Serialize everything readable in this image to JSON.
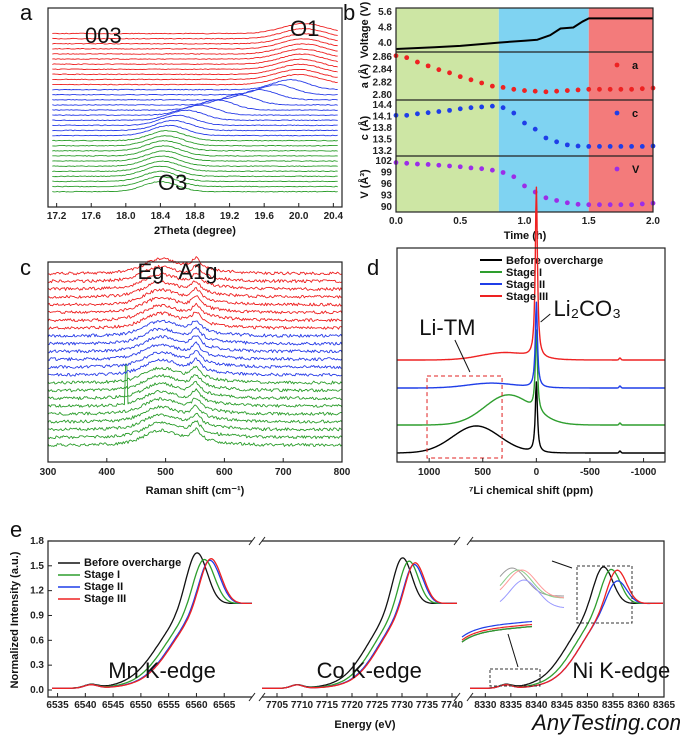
{
  "chart_data": [
    {
      "panel": "a",
      "type": "line",
      "xlabel": "2Theta (degree)",
      "xlim": [
        17.1,
        20.5
      ],
      "xticks": [
        "17.2",
        "17.6",
        "18.0",
        "18.4",
        "18.8",
        "19.2",
        "19.6",
        "20.0",
        "20.4"
      ],
      "annotations": [
        "003",
        "O1",
        "O3"
      ],
      "annotation_colors": [
        "#111111",
        "#e02020",
        "#e02020"
      ],
      "stacks": [
        {
          "color": "#2e9e2e",
          "peaks": [
            18.4,
            18.4,
            18.4,
            18.4,
            18.42,
            18.42,
            18.44,
            18.44,
            18.45,
            18.46,
            18.48
          ]
        },
        {
          "color": "#2a3ee8",
          "peaks": [
            18.5,
            18.55,
            18.6,
            18.7,
            18.85,
            19.05,
            19.3,
            19.55,
            19.75,
            19.9
          ]
        },
        {
          "color": "#ee2222",
          "peaks": [
            20.0,
            20.0,
            20.02,
            20.02,
            20.04,
            20.04,
            20.05,
            20.05,
            20.06,
            20.06,
            20.06
          ]
        }
      ]
    },
    {
      "panel": "b",
      "type": "scatter",
      "xlabel": "Time (h)",
      "xlim": [
        0,
        2.0
      ],
      "xticks": [
        "0.0",
        "0.5",
        "1.0",
        "1.5",
        "2.0"
      ],
      "regions": [
        {
          "from": 0,
          "to": 0.8,
          "color": "#cde6a4"
        },
        {
          "from": 0.8,
          "to": 1.5,
          "color": "#7fd3f2"
        },
        {
          "from": 1.5,
          "to": 2.0,
          "color": "#f37b7b"
        }
      ],
      "voltage": {
        "ylabel": "Voltage (V)",
        "ylim": [
          3.6,
          5.7
        ],
        "yticks": [
          "4.0",
          "4.8",
          "5.6"
        ],
        "color": "#000000",
        "t": [
          0,
          0.3,
          0.5,
          0.8,
          1.0,
          1.1,
          1.2,
          1.28,
          1.38,
          1.45,
          1.5,
          2.0
        ],
        "v": [
          3.69,
          3.78,
          3.85,
          4.02,
          4.12,
          4.17,
          4.4,
          4.75,
          4.8,
          5.1,
          5.27,
          5.27
        ]
      },
      "series": [
        {
          "name": "a",
          "ylabel": "a (Å)",
          "color": "#ee2222",
          "ylim": [
            2.797,
            2.868
          ],
          "yticks": [
            "2.86",
            "2.84",
            "2.82",
            "2.80"
          ],
          "values": [
            2.862,
            2.859,
            2.852,
            2.846,
            2.84,
            2.835,
            2.829,
            2.824,
            2.819,
            2.814,
            2.812,
            2.809,
            2.807,
            2.806,
            2.805,
            2.806,
            2.807,
            2.808,
            2.809,
            2.809,
            2.809,
            2.809,
            2.809,
            2.81,
            2.811
          ]
        },
        {
          "name": "c",
          "ylabel": "c (Å)",
          "color": "#1f3ee8",
          "ylim": [
            13.05,
            14.55
          ],
          "yticks": [
            "14.4",
            "14.1",
            "13.8",
            "13.5",
            "13.2"
          ],
          "values": [
            14.13,
            14.13,
            14.17,
            14.2,
            14.23,
            14.26,
            14.3,
            14.33,
            14.35,
            14.37,
            14.33,
            14.19,
            13.93,
            13.77,
            13.54,
            13.44,
            13.36,
            13.33,
            13.32,
            13.32,
            13.32,
            13.32,
            13.32,
            13.32,
            13.33
          ]
        },
        {
          "name": "V",
          "ylabel": "V (Å³)",
          "color": "#9b2ee8",
          "ylim": [
            89.2,
            102.6
          ],
          "yticks": [
            "102",
            "99",
            "96",
            "93",
            "90"
          ],
          "values": [
            101.6,
            101.4,
            101.2,
            101.1,
            100.9,
            100.7,
            100.5,
            100.2,
            100.0,
            99.6,
            99.0,
            97.9,
            95.5,
            93.9,
            92.4,
            91.7,
            91.1,
            90.7,
            90.6,
            90.6,
            90.6,
            90.6,
            90.6,
            90.8,
            91.0
          ]
        }
      ],
      "t_points": "0 to 2.0 h, 25 evenly spaced"
    },
    {
      "panel": "c",
      "type": "line",
      "xlabel": "Raman shift (cm⁻¹)",
      "xlim": [
        300,
        800
      ],
      "xticks": [
        "300",
        "400",
        "500",
        "600",
        "700",
        "800"
      ],
      "peak_labels": [
        "Eg",
        "A1g"
      ],
      "peak_positions": [
        490,
        550
      ],
      "stacks": [
        {
          "color": "#2e9e2e",
          "count": 9
        },
        {
          "color": "#2a3ee8",
          "count": 6
        },
        {
          "color": "#ee2222",
          "count": 8
        }
      ]
    },
    {
      "panel": "d",
      "type": "line",
      "xlabel": "⁷Li chemical shift (ppm)",
      "xlim": [
        1300,
        -1200
      ],
      "xticks": [
        "1000",
        "500",
        "0",
        "-500",
        "-1000"
      ],
      "annotations": [
        "Li-TM",
        "Li₂CO₃"
      ],
      "legend_position": "top-right",
      "series": [
        {
          "name": "Before overcharge",
          "color": "#000000",
          "broad_peak_ppm": 560,
          "broad_height": 0.45
        },
        {
          "name": "Stage I",
          "color": "#2e9e2e",
          "broad_peak_ppm": 260,
          "broad_height": 0.5
        },
        {
          "name": "Stage II",
          "color": "#1f3ee8",
          "broad_peak_ppm": 420,
          "broad_height": 0.08
        },
        {
          "name": "Stage III",
          "color": "#ee2222",
          "broad_peak_ppm": 300,
          "broad_height": 0.12
        }
      ]
    },
    {
      "panel": "e",
      "type": "line",
      "xlabel": "Energy (eV)",
      "ylabel": "Normalized Intensity (a.u.)",
      "ylim": [
        -0.05,
        1.8
      ],
      "yticks": [
        "0.0",
        "0.3",
        "0.6",
        "0.9",
        "1.2",
        "1.5",
        "1.8"
      ],
      "legend_position": "top-left",
      "edges": [
        {
          "label": "Mn K-edge",
          "xlim": [
            6534,
            6570
          ],
          "xticks": [
            "6535",
            "6540",
            "6545",
            "6550",
            "6555",
            "6560",
            "6565"
          ],
          "peaks": {
            "Before overcharge": [
              6560,
              1.72
            ],
            "Stage I": [
              6561.3,
              1.64
            ],
            "Stage II": [
              6562.3,
              1.63
            ],
            "Stage III": [
              6562.5,
              1.65
            ]
          }
        },
        {
          "label": "Co K-edge",
          "xlim": [
            7702,
            7741
          ],
          "xticks": [
            "7705",
            "7710",
            "7715",
            "7720",
            "7725",
            "7730",
            "7735",
            "7740"
          ],
          "peaks": {
            "Before overcharge": [
              7730,
              1.66
            ],
            "Stage I": [
              7731.3,
              1.62
            ],
            "Stage II": [
              7732.3,
              1.58
            ],
            "Stage III": [
              7732.5,
              1.6
            ]
          }
        },
        {
          "label": "Ni K-edge",
          "xlim": [
            8327,
            8365
          ],
          "xticks": [
            "8330",
            "8335",
            "8340",
            "8345",
            "8350",
            "8355",
            "8360",
            "8365"
          ],
          "peaks": {
            "Before overcharge": [
              8353,
              1.55
            ],
            "Stage I": [
              8354.5,
              1.52
            ],
            "Stage II": [
              8355.7,
              1.38
            ],
            "Stage III": [
              8355.7,
              1.51
            ]
          }
        }
      ],
      "series": [
        {
          "name": "Before overcharge",
          "color": "#111111"
        },
        {
          "name": "Stage I",
          "color": "#2e9e2e"
        },
        {
          "name": "Stage II",
          "color": "#1f3ee8"
        },
        {
          "name": "Stage III",
          "color": "#ee2222"
        }
      ]
    }
  ],
  "panel_letters": [
    "a",
    "b",
    "c",
    "d",
    "e"
  ],
  "watermark": "AnyTesting.com"
}
